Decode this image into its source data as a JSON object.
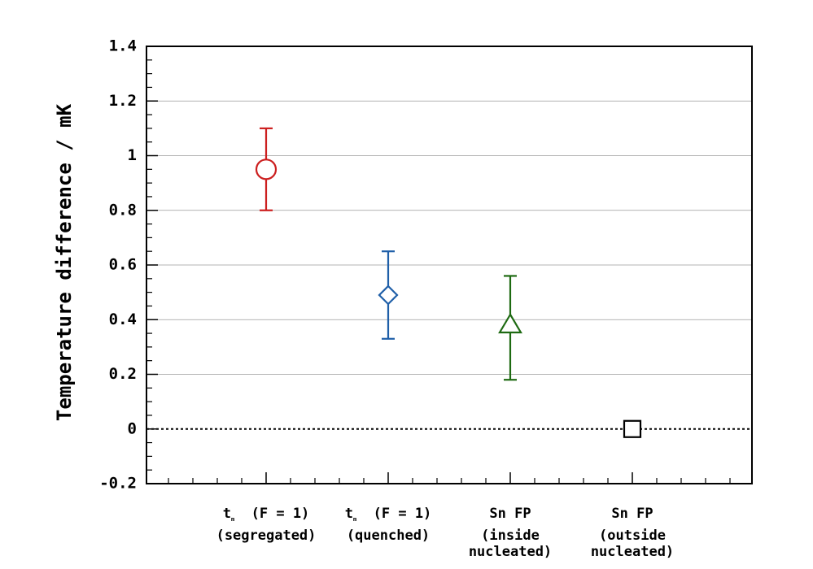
{
  "chart_data": {
    "type": "scatter",
    "title": "",
    "xlabel": "",
    "ylabel": "Temperature difference / mK",
    "ylim": [
      -0.2,
      1.4
    ],
    "yticks": [
      "-0.2",
      "0",
      "0.2",
      "0.4",
      "0.6",
      "0.8",
      "1",
      "1.2",
      "1.4"
    ],
    "ytick_values": [
      -0.2,
      0,
      0.2,
      0.4,
      0.6,
      0.8,
      1,
      1.2,
      1.4
    ],
    "grid": "horizontal",
    "zero_line": "dotted",
    "series": [
      {
        "name": "t_m (F = 1) (segregated)",
        "label_main": "t",
        "label_sub": "m",
        "label_rest": " (F = 1)",
        "label_lines": [
          "(segregated)"
        ],
        "value": 0.95,
        "err_low": 0.8,
        "err_high": 1.1,
        "marker": "circle",
        "color": "#cc1f1f"
      },
      {
        "name": "t_m (F = 1) (quenched)",
        "label_main": "t",
        "label_sub": "m",
        "label_rest": " (F = 1)",
        "label_lines": [
          "(quenched)"
        ],
        "value": 0.49,
        "err_low": 0.33,
        "err_high": 0.65,
        "marker": "diamond",
        "color": "#1f5fa8"
      },
      {
        "name": "Sn FP (inside nucleated)",
        "label_main": "Sn FP",
        "label_sub": "",
        "label_rest": "",
        "label_lines": [
          "(inside",
          "nucleated)"
        ],
        "value": 0.38,
        "err_low": 0.18,
        "err_high": 0.56,
        "marker": "triangle",
        "color": "#1e6a12"
      },
      {
        "name": "Sn FP (outside nucleated)",
        "label_main": "Sn FP",
        "label_sub": "",
        "label_rest": "",
        "label_lines": [
          "(outside",
          "nucleated)"
        ],
        "value": 0.0,
        "err_low": null,
        "err_high": null,
        "marker": "square",
        "color": "#000000"
      }
    ]
  }
}
